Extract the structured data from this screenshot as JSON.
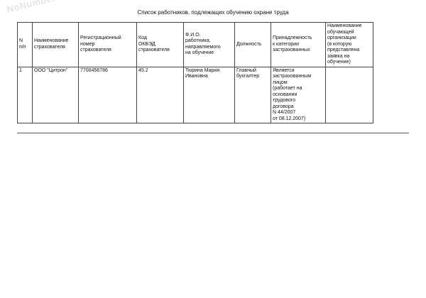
{
  "watermark": "NoNumber.ru",
  "title": "Список работников, подлежащих обучению охране труда",
  "table": {
    "headers": [
      "N\nп/п",
      "Наименование\nстрахователя",
      "Регистрационный\nномер\nстрахователя",
      "Код\nОКВЭД\nстрахователя",
      "Ф.И.О.\nработника,\nнаправляемого\nна обучение",
      "Должность",
      "Принадлежность\nк категории\nзастрахованных",
      "Наименование\nобучающей\nорганизации\n(в которую\nпредставлена\nзаявка на\nобучение)"
    ],
    "rows": [
      [
        "1",
        "ООО \"Цитрон\"",
        "7700456786",
        "45.2",
        "Тюрина Мария\nИвановна",
        "Главный\nбухгалтер",
        "Является\nзастрахованным\nлицом\n(работает на\nосновании\nтрудового\nдоговора\nN 44/2007\nот 08.12.2007)",
        ""
      ]
    ]
  }
}
